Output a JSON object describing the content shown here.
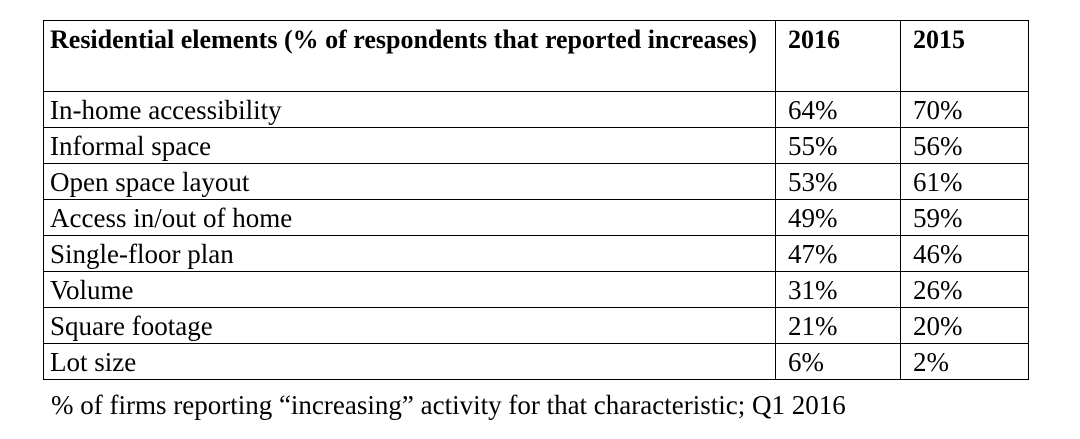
{
  "chart_data": {
    "type": "table",
    "columns": [
      "Residential elements (% of respondents that reported increases)",
      "2016",
      "2015"
    ],
    "rows": [
      {
        "label": "In-home accessibility",
        "v2016": "64%",
        "v2015": "70%"
      },
      {
        "label": "Informal space",
        "v2016": "55%",
        "v2015": "56%"
      },
      {
        "label": "Open space layout",
        "v2016": "53%",
        "v2015": "61%"
      },
      {
        "label": "Access in/out of home",
        "v2016": "49%",
        "v2015": "59%"
      },
      {
        "label": "Single-floor plan",
        "v2016": "47%",
        "v2015": "46%"
      },
      {
        "label": "Volume",
        "v2016": "31%",
        "v2015": "26%"
      },
      {
        "label": "Square footage",
        "v2016": "21%",
        "v2015": "20%"
      },
      {
        "label": "Lot size",
        "v2016": "6%",
        "v2015": "2%"
      }
    ],
    "caption": "% of firms reporting “increasing” activity for that characteristic; Q1 2016"
  }
}
